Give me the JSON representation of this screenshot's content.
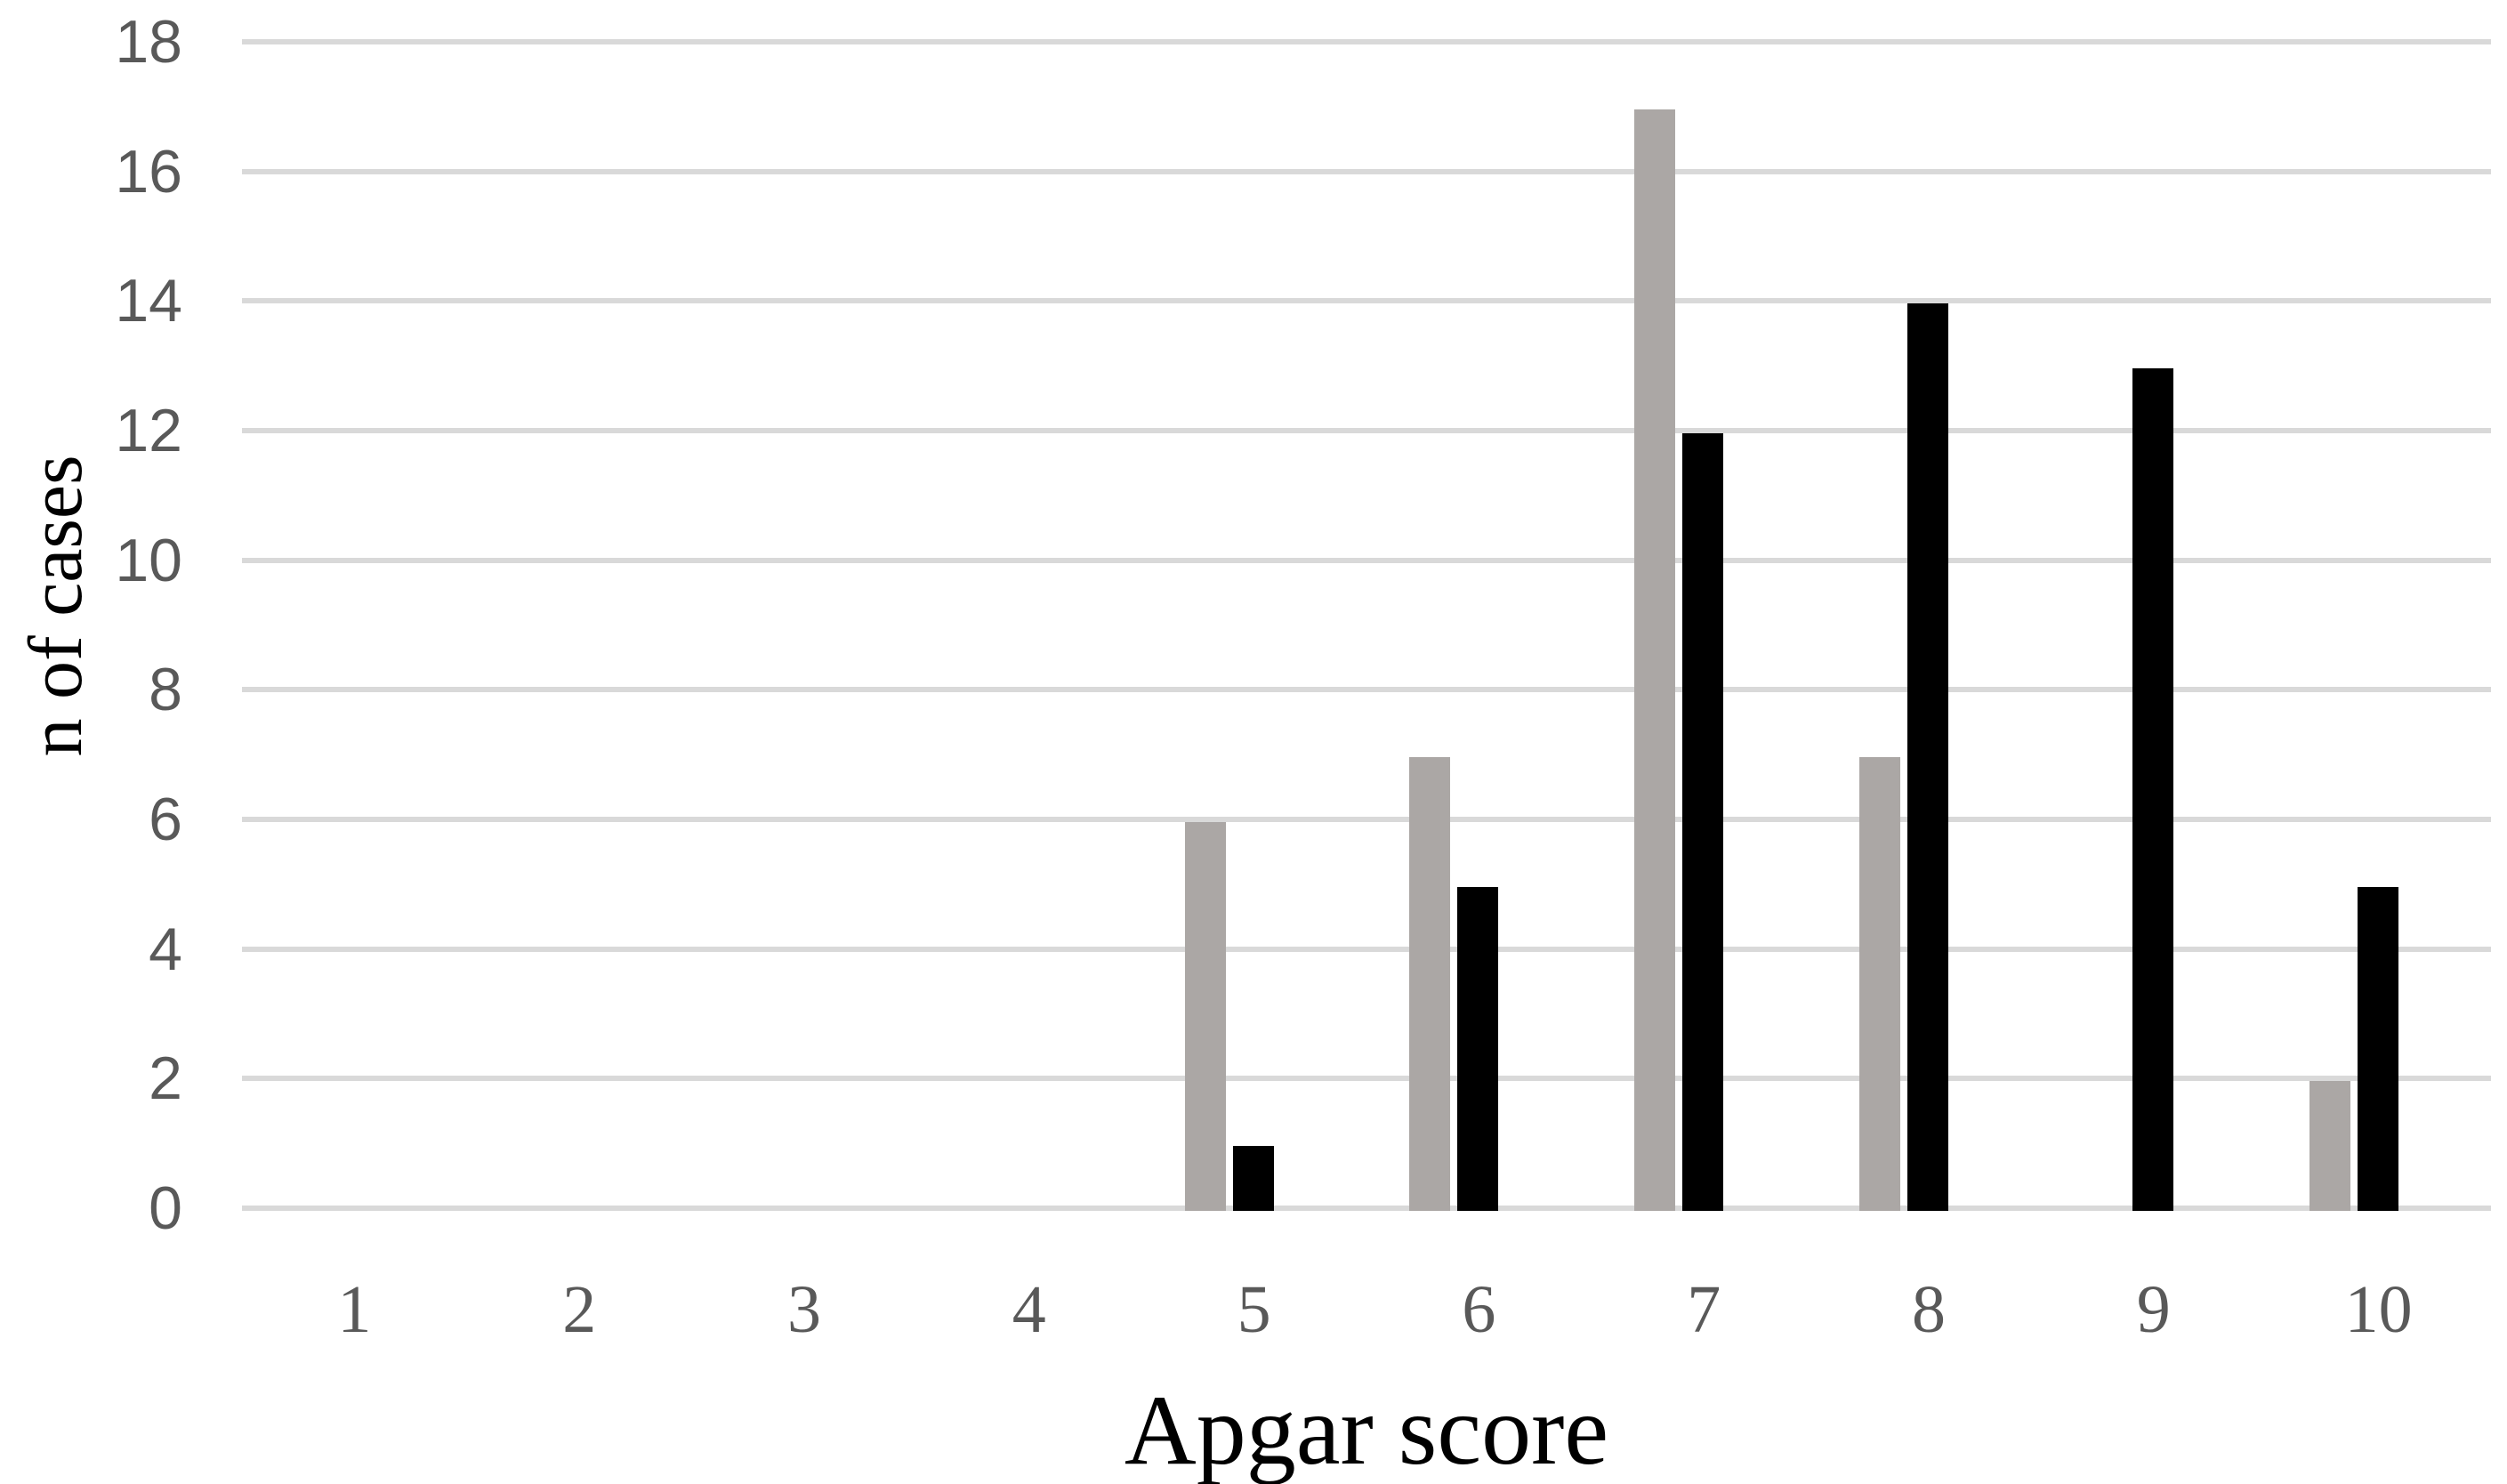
{
  "chart_data": {
    "type": "bar",
    "title": "",
    "xlabel": "Apgar score",
    "ylabel": "n of cases",
    "categories": [
      "1",
      "2",
      "3",
      "4",
      "5",
      "6",
      "7",
      "8",
      "9",
      "10"
    ],
    "series": [
      {
        "name": "gray-bars",
        "color": "#aba7a5",
        "values": [
          0,
          0,
          0,
          0,
          6,
          7,
          17,
          7,
          0,
          2
        ]
      },
      {
        "name": "black-bars",
        "color": "#000000",
        "values": [
          0,
          0,
          0,
          0,
          1,
          5,
          12,
          14,
          13,
          5
        ]
      }
    ],
    "ylim": [
      0,
      18
    ],
    "yticks": [
      18,
      16,
      14,
      12,
      10,
      8,
      6,
      4,
      2,
      0
    ],
    "grid": "horizontal",
    "legend": "none",
    "colors": {
      "gridline": "#d9d9d9",
      "y_tick_label": "#595959",
      "x_tick_label": "#595959",
      "axis_title": "#000000",
      "background": "#ffffff"
    }
  }
}
